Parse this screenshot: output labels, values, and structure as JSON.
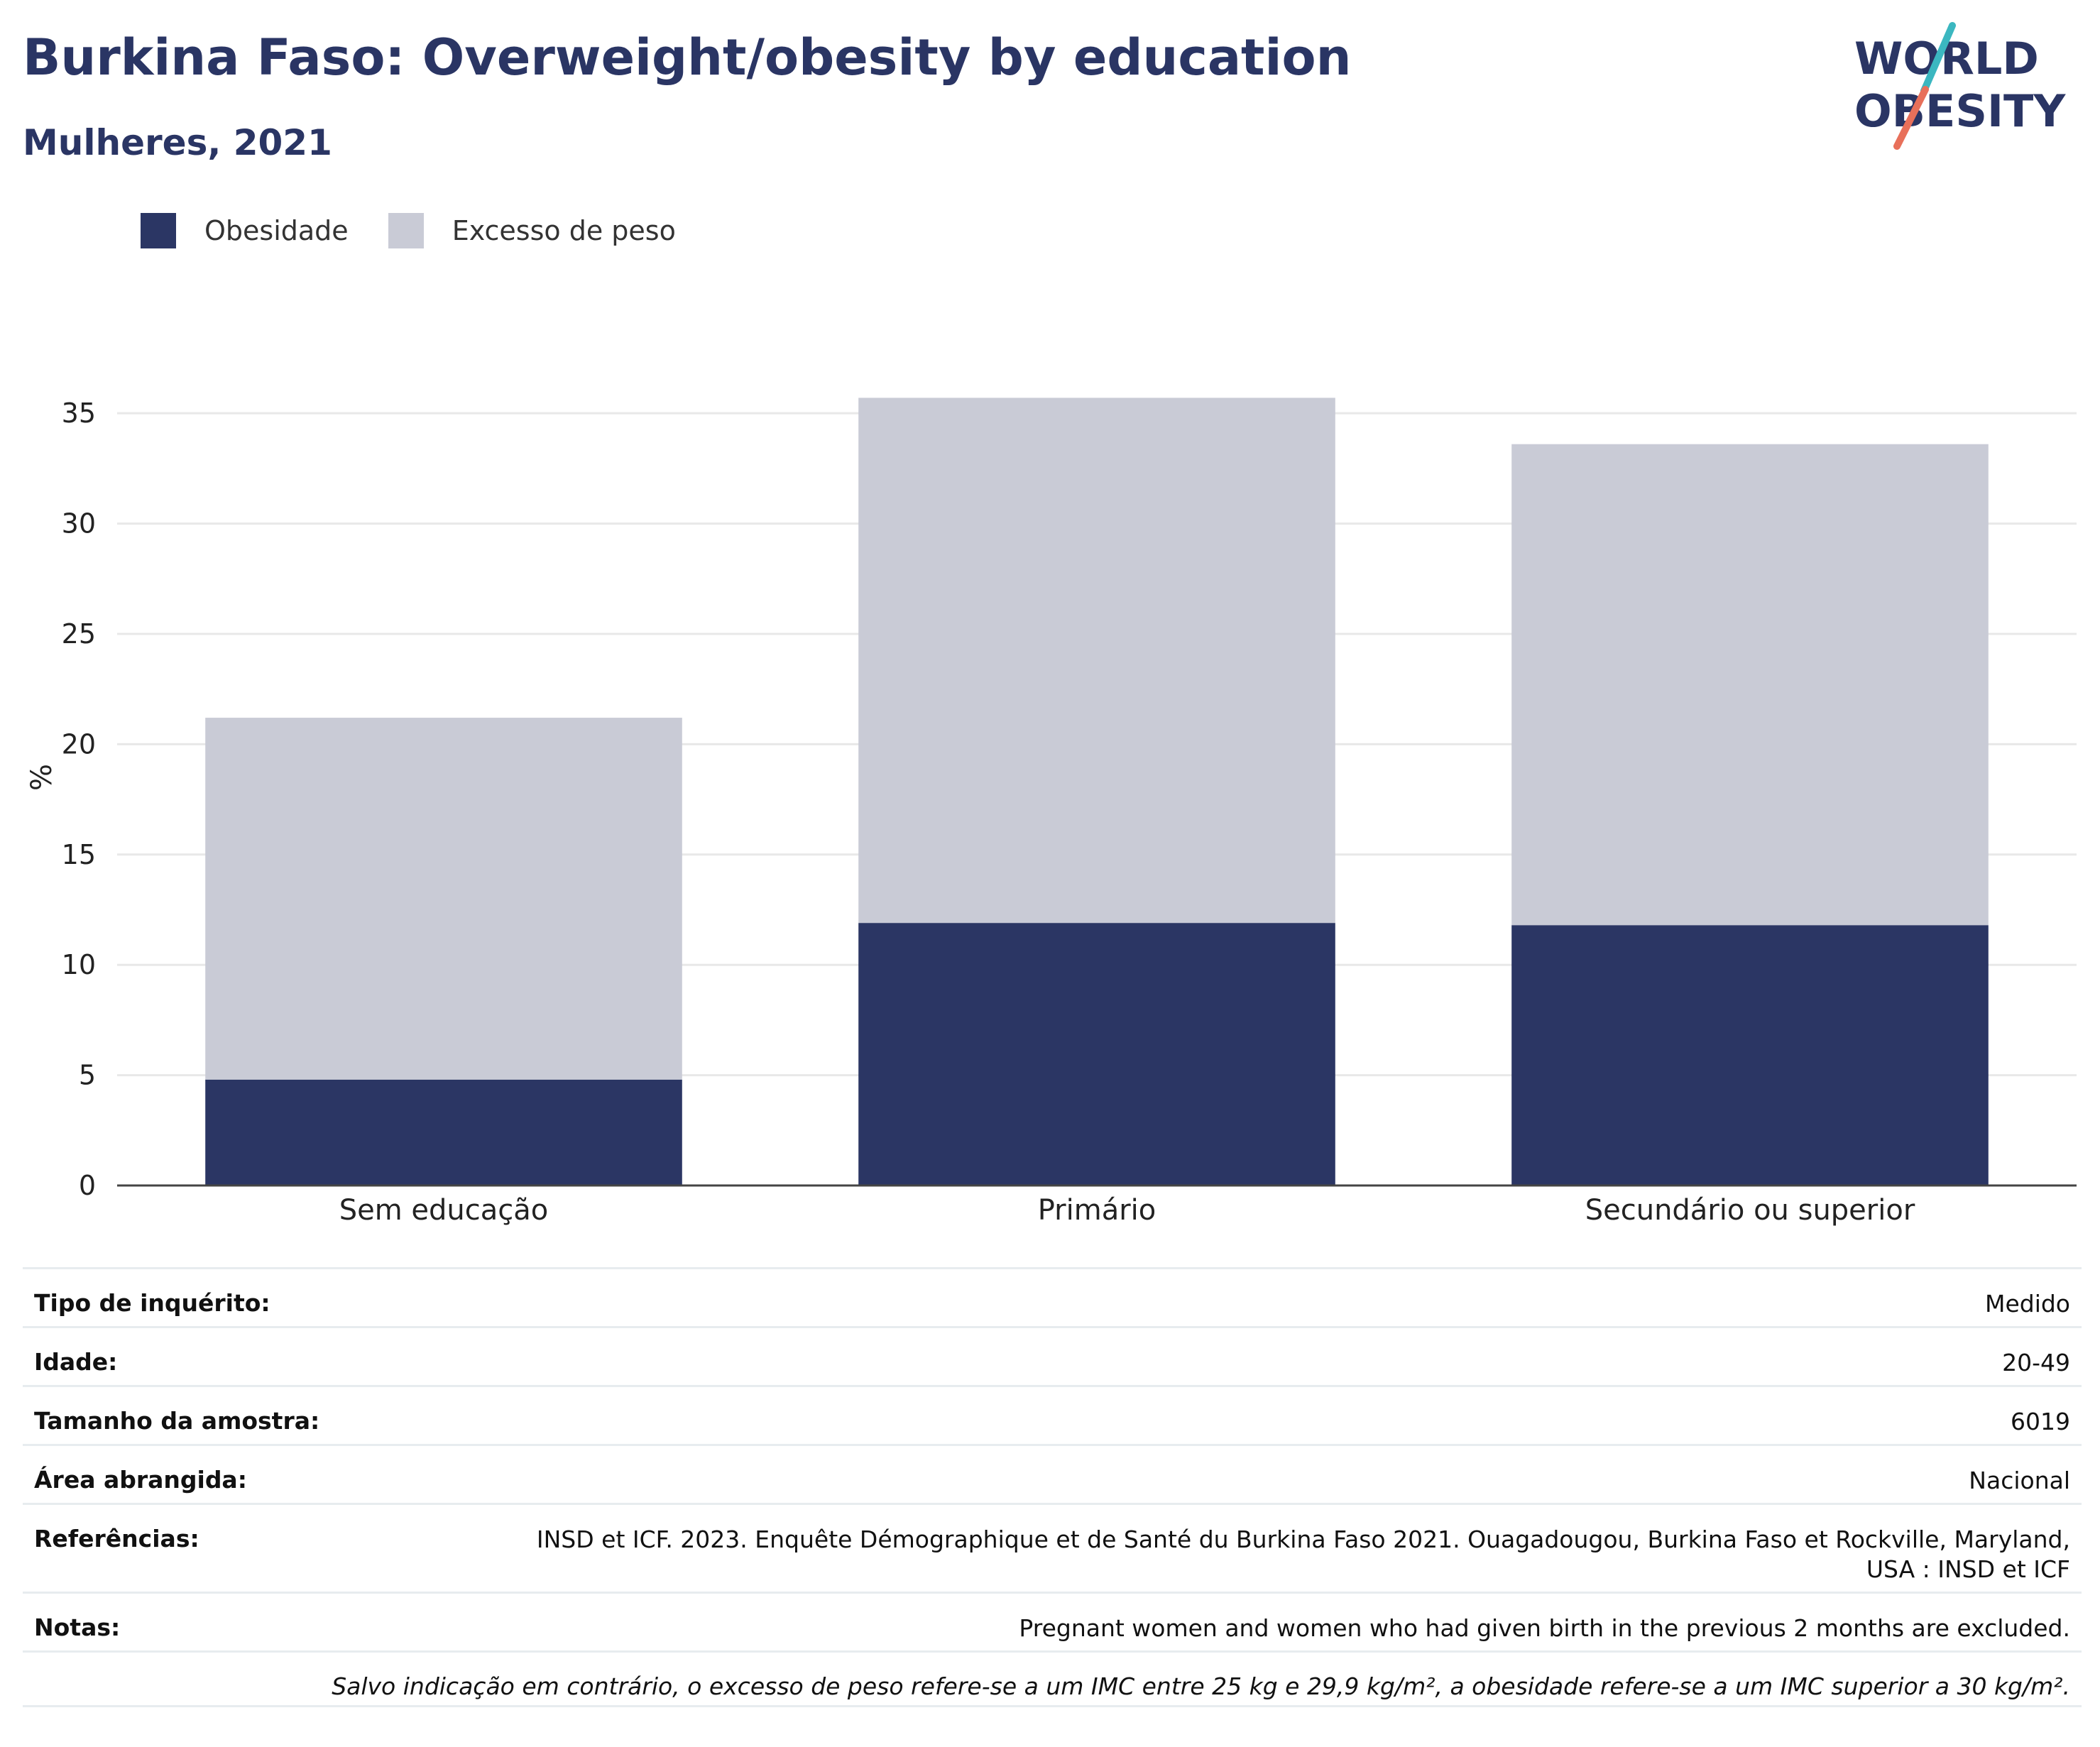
{
  "header": {
    "title": "Burkina Faso: Overweight/obesity by education",
    "subtitle": "Mulheres, 2021"
  },
  "logo": {
    "line1": "WORLD",
    "line2": "OBESITY"
  },
  "colors": {
    "obesity": "#2b3664",
    "overweight": "#c9cbd6",
    "title": "#2a3564",
    "grid": "#e8e8e8"
  },
  "chart_data": {
    "type": "bar",
    "stacked": true,
    "categories": [
      "Sem educação",
      "Primário",
      "Secundário ou superior"
    ],
    "series": [
      {
        "name": "Obesidade",
        "values": [
          4.8,
          11.9,
          11.8
        ],
        "color": "#2b3664"
      },
      {
        "name": "Excesso de peso",
        "values": [
          16.4,
          23.8,
          21.8
        ],
        "color": "#c9cbd6"
      }
    ],
    "ylabel": "%",
    "ylim": [
      0,
      37
    ],
    "yticks": [
      0,
      5,
      10,
      15,
      20,
      25,
      30,
      35
    ],
    "grid": true,
    "legend_position": "top-left"
  },
  "info": [
    {
      "label": "Tipo de inquérito:",
      "value": "Medido"
    },
    {
      "label": "Idade:",
      "value": "20-49"
    },
    {
      "label": "Tamanho da amostra:",
      "value": "6019"
    },
    {
      "label": "Área abrangida:",
      "value": "Nacional"
    },
    {
      "label": "Referências:",
      "value": "INSD et ICF. 2023. Enquête Démographique et de Santé du Burkina Faso 2021. Ouagadougou, Burkina Faso et Rockville, Maryland, USA : INSD et ICF"
    },
    {
      "label": "Notas:",
      "value": "Pregnant women and women who had given birth in the previous 2 months are excluded."
    }
  ],
  "footnote": "Salvo indicação em contrário, o excesso de peso refere-se a um IMC entre 25 kg e 29,9 kg/m², a obesidade refere-se a um IMC superior a 30 kg/m²."
}
